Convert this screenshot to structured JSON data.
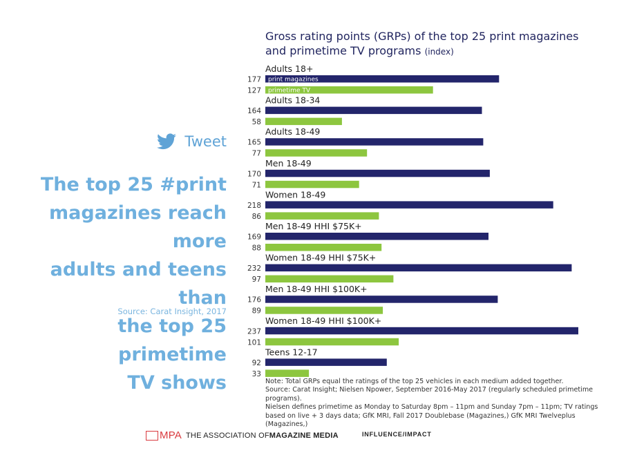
{
  "tweet": {
    "label": "Tweet"
  },
  "headline": {
    "line1": "The top 25 #print",
    "line2": "magazines reach more",
    "line3": "adults and teens than",
    "line4": "the top 25 primetime",
    "line5": "TV shows",
    "source": "Source: Carat Insight, 2017"
  },
  "chart_data": {
    "type": "bar",
    "orientation": "horizontal",
    "title": "Gross rating points (GRPs) of the top 25 print magazines and primetime TV programs",
    "title_line1": "Gross rating points (GRPs) of the top 25 print magazines",
    "title_line2": "and primetime TV programs",
    "subtitle": "(index)",
    "categories": [
      "Adults 18+",
      "Adults 18-34",
      "Adults 18-49",
      "Men 18-49",
      "Women 18-49",
      "Men 18-49 HHI $75K+",
      "Women 18-49 HHI $75K+",
      "Men 18-49 HHI $100K+",
      "Women 18-49 HHI $100K+",
      "Teens 12-17"
    ],
    "series": [
      {
        "name": "print magazines",
        "color": "#23256b",
        "values": [
          177,
          164,
          165,
          170,
          218,
          169,
          232,
          176,
          237,
          92
        ]
      },
      {
        "name": "primetime TV",
        "color": "#8dc63f",
        "values": [
          127,
          58,
          77,
          71,
          86,
          88,
          97,
          89,
          101,
          33
        ]
      }
    ],
    "xlim": [
      0,
      237
    ],
    "grid": false,
    "legend": "inside first bars"
  },
  "note": {
    "line1": "Note: Total GRPs equal the ratings of the top 25 vehicles in each medium added together.",
    "line2": "Source: Carat Insight; Nielsen Npower, September 2016-May 2017 (regularly scheduled primetime programs).",
    "line3": "Nielsen defines primetime as Monday to Saturday 8pm – 11pm and Sunday 7pm – 11pm; TV ratings",
    "line4": "based on live + 3 days data; GfK MRI, Fall 2017 Doublebase (Magazines,) GfK MRI Twelveplus (Magazines,)"
  },
  "footer": {
    "mpa": "MPA",
    "org_prefix": "THE ASSOCIATION OF ",
    "org_bold": "MAGAZINE MEDIA",
    "tagline": "INFLUENCE/IMPACT"
  }
}
